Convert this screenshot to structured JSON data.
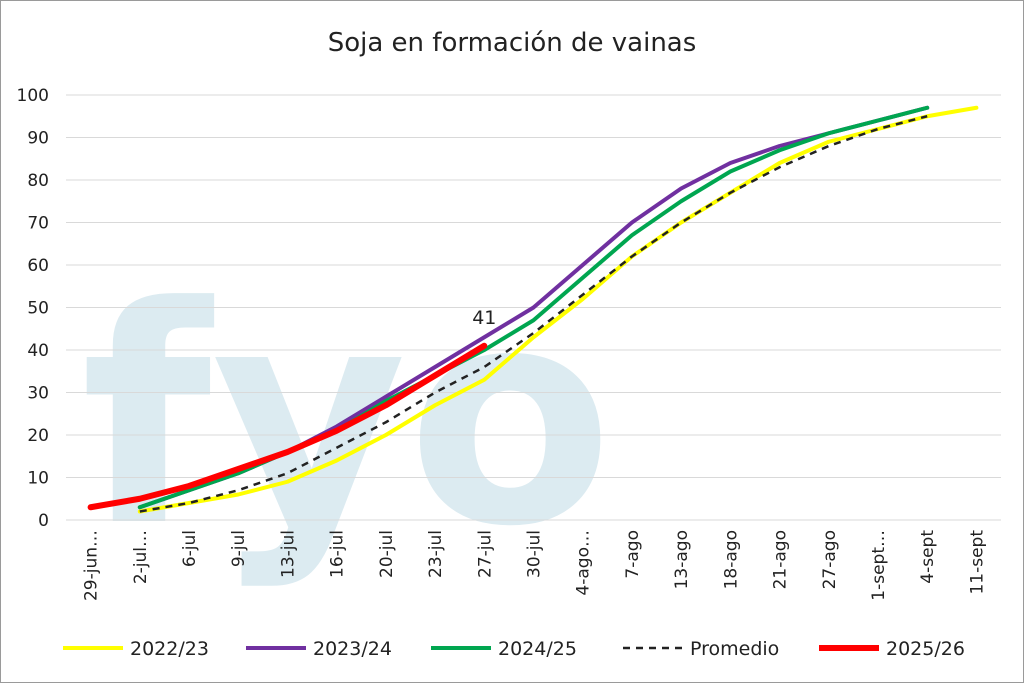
{
  "chart_data": {
    "type": "line",
    "title": "Soja en formación de vainas",
    "watermark": "fyo",
    "ylim": [
      0,
      100
    ],
    "yticks": [
      0,
      10,
      20,
      30,
      40,
      50,
      60,
      70,
      80,
      90,
      100
    ],
    "grid": true,
    "legend_position": "bottom",
    "categories": [
      "29-jun…",
      "2-jul…",
      "6-jul",
      "9-jul",
      "13-jul",
      "16-jul",
      "20-jul",
      "23-jul",
      "27-jul",
      "30-jul",
      "4-ago…",
      "7-ago",
      "13-ago",
      "18-ago",
      "21-ago",
      "27-ago",
      "1-sept…",
      "4-sept",
      "11-sept"
    ],
    "series": [
      {
        "name": "2022/23",
        "color": "#ffff00",
        "dash": false,
        "width": 4,
        "values": [
          null,
          2,
          4,
          6,
          9,
          14,
          20,
          27,
          33,
          43,
          52,
          62,
          70,
          77,
          84,
          89,
          92,
          95,
          97
        ]
      },
      {
        "name": "2023/24",
        "color": "#7030a0",
        "dash": false,
        "width": 4,
        "values": [
          null,
          3,
          7,
          11,
          16,
          22,
          29,
          36,
          43,
          50,
          60,
          70,
          78,
          84,
          88,
          91,
          94,
          97,
          null
        ]
      },
      {
        "name": "2024/25",
        "color": "#00a650",
        "dash": false,
        "width": 4,
        "values": [
          null,
          3,
          7,
          11,
          16,
          21,
          28,
          34,
          40,
          47,
          57,
          67,
          75,
          82,
          87,
          91,
          94,
          97,
          null
        ]
      },
      {
        "name": "Promedio",
        "color": "#222222",
        "dash": true,
        "width": 2.5,
        "values": [
          null,
          2,
          4,
          7,
          11,
          17,
          23,
          30,
          36,
          44,
          53,
          62,
          70,
          77,
          83,
          88,
          92,
          95,
          null
        ]
      },
      {
        "name": "2025/26",
        "color": "#ff0000",
        "dash": false,
        "width": 6,
        "values": [
          3,
          5,
          8,
          12,
          16,
          21,
          27,
          34,
          41,
          null,
          null,
          null,
          null,
          null,
          null,
          null,
          null,
          null,
          null
        ]
      }
    ],
    "annotations": [
      {
        "series": "2025/26",
        "category": "27-jul",
        "text": "41"
      }
    ]
  }
}
